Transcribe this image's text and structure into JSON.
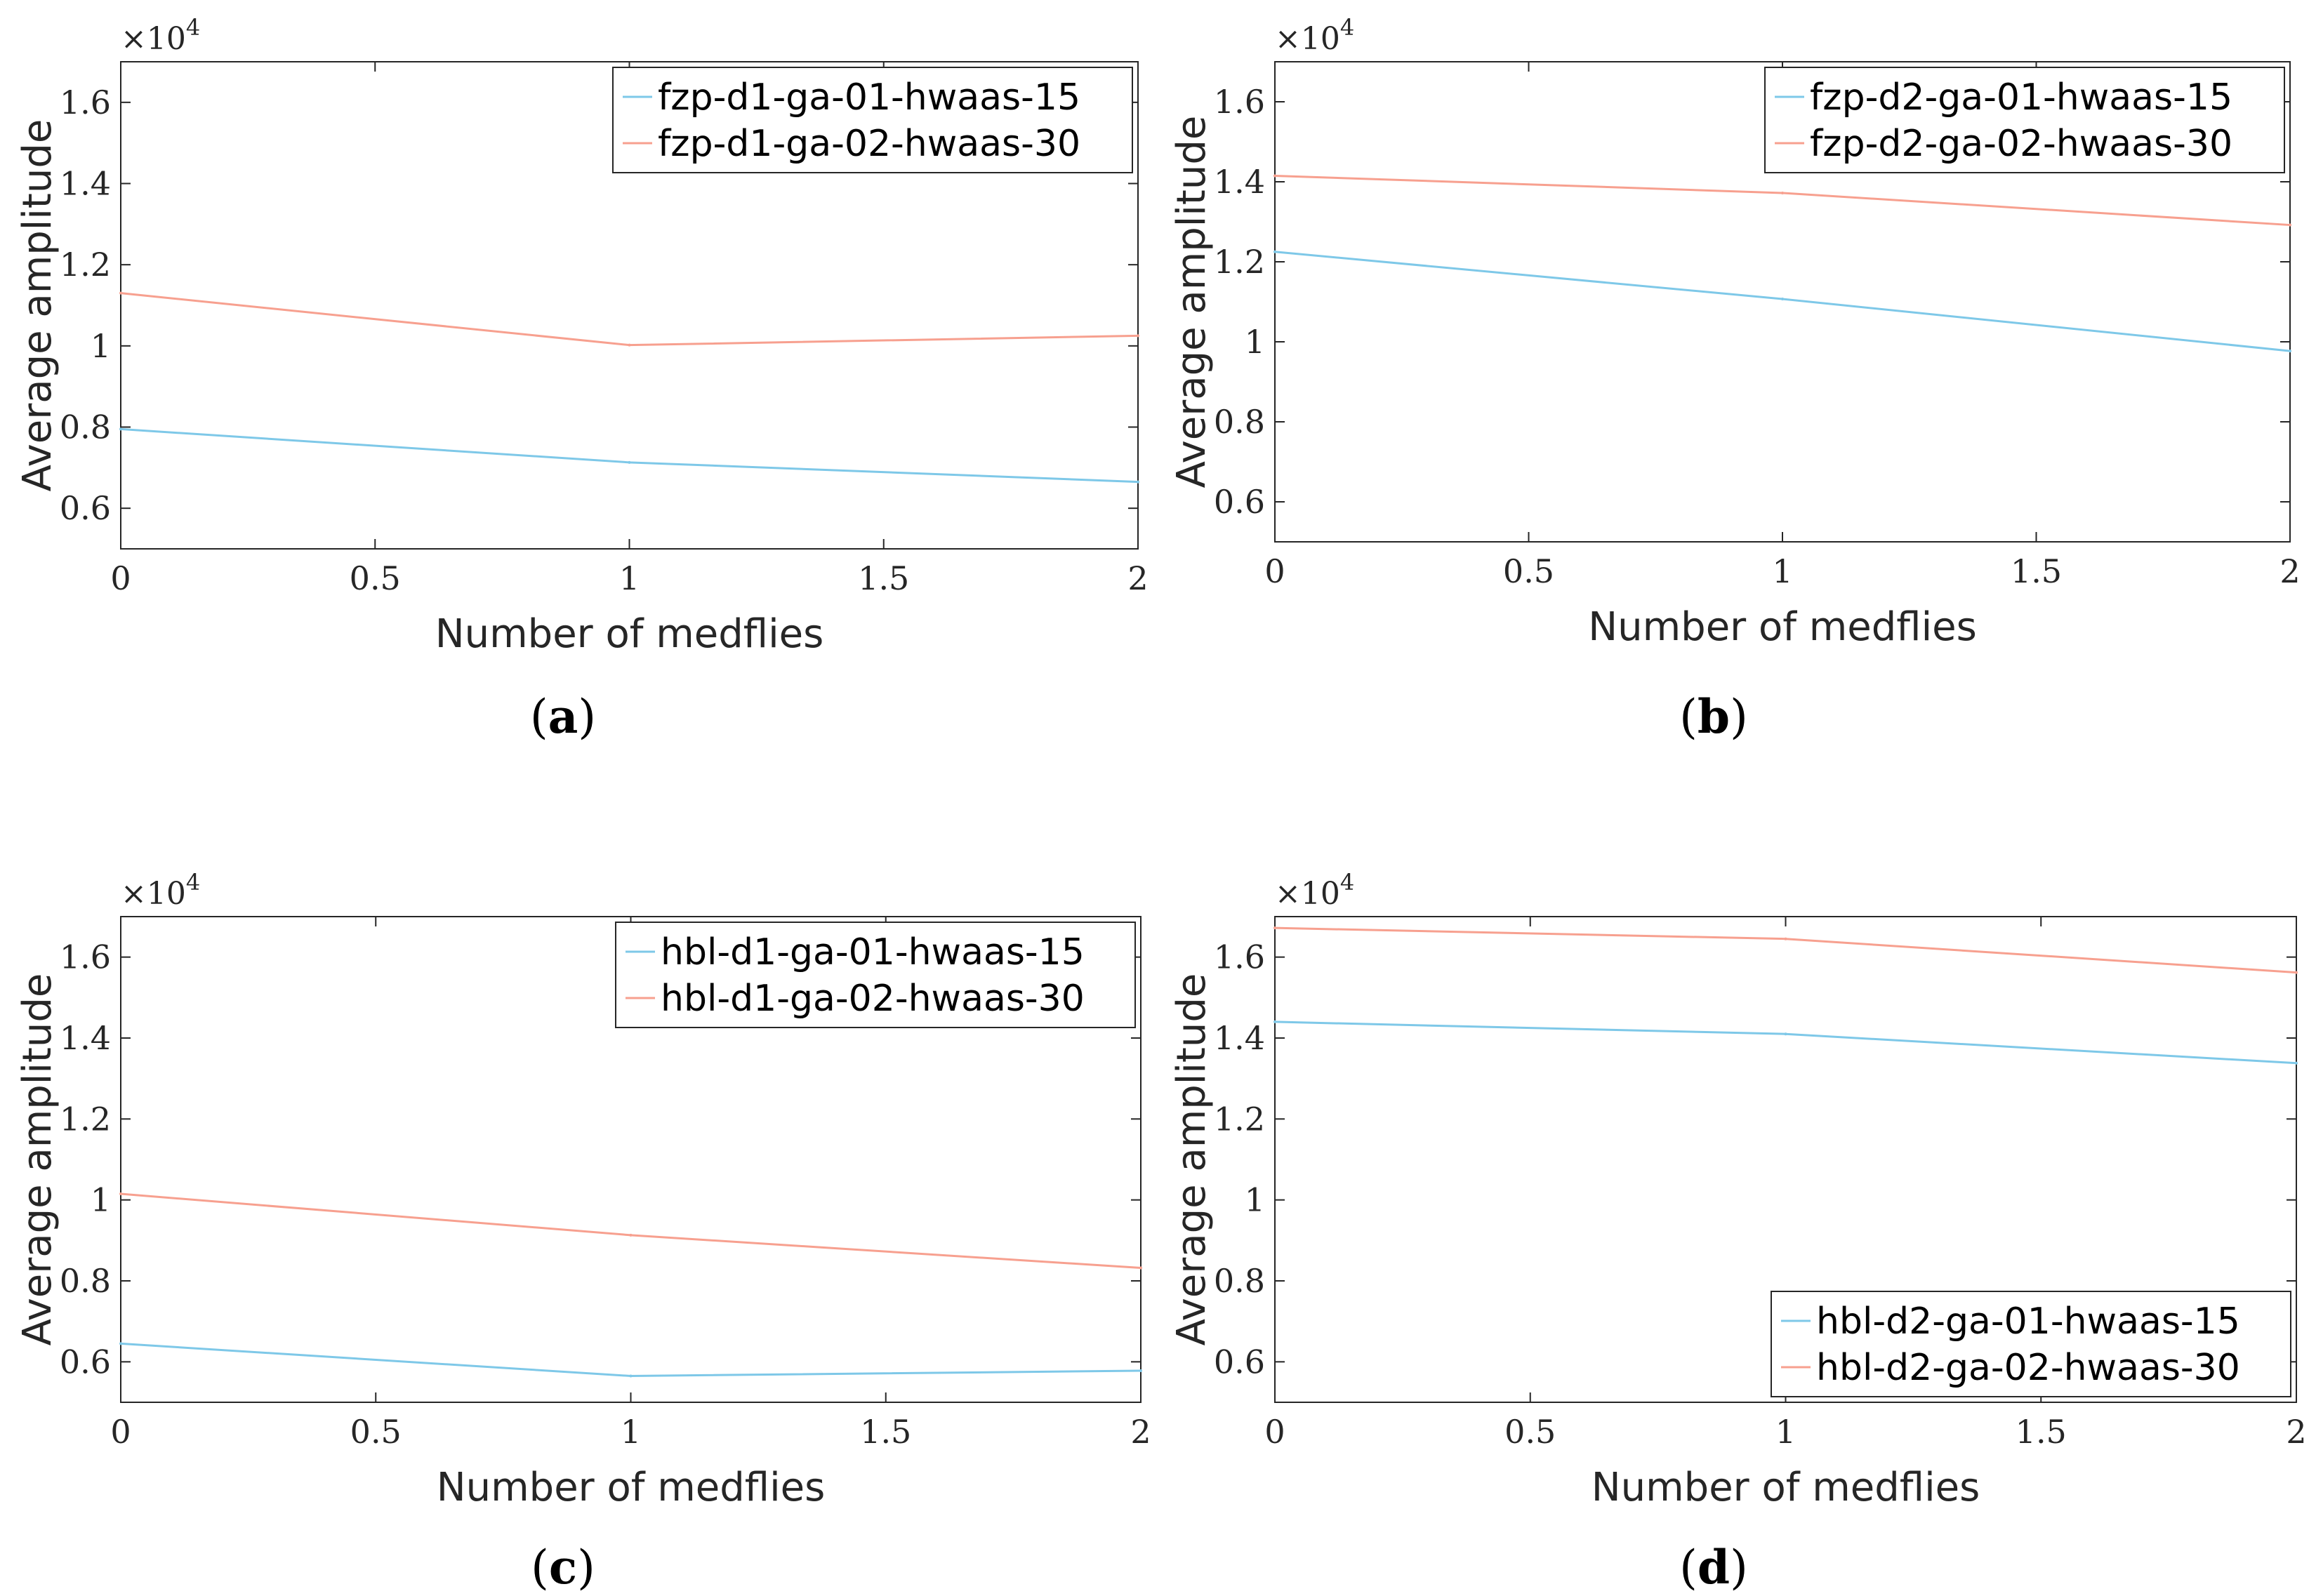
{
  "chart_data": [
    {
      "type": "line",
      "caption_letter": "a",
      "xlabel": "Number of medflies",
      "ylabel": "Average amplitude",
      "y_exponent": "×10",
      "y_exponent_power": "4",
      "xlim": [
        0,
        2
      ],
      "ylim": [
        0.5,
        1.7
      ],
      "xticks": [
        "0",
        "0.5",
        "1",
        "1.5",
        "2"
      ],
      "yticks": [
        "0.6",
        "0.8",
        "1",
        "1.2",
        "1.4",
        "1.6"
      ],
      "legend_position": "top-right",
      "x": [
        0,
        1,
        2
      ],
      "series": [
        {
          "name": "fzp-d1-ga-01-hwaas-15",
          "color": "#7ec8e8",
          "values": [
            0.795,
            0.713,
            0.665
          ]
        },
        {
          "name": "fzp-d1-ga-02-hwaas-30",
          "color": "#f7a08f",
          "values": [
            1.13,
            1.002,
            1.025
          ]
        }
      ]
    },
    {
      "type": "line",
      "caption_letter": "b",
      "xlabel": "Number of medflies",
      "ylabel": "Average amplitude",
      "y_exponent": "×10",
      "y_exponent_power": "4",
      "xlim": [
        0,
        2
      ],
      "ylim": [
        0.5,
        1.7
      ],
      "xticks": [
        "0",
        "0.5",
        "1",
        "1.5",
        "2"
      ],
      "yticks": [
        "0.6",
        "0.8",
        "1",
        "1.2",
        "1.4",
        "1.6"
      ],
      "legend_position": "top-right",
      "x": [
        0,
        1,
        2
      ],
      "series": [
        {
          "name": "fzp-d2-ga-01-hwaas-15",
          "color": "#7ec8e8",
          "values": [
            1.225,
            1.107,
            0.977
          ]
        },
        {
          "name": "fzp-d2-ga-02-hwaas-30",
          "color": "#f7a08f",
          "values": [
            1.415,
            1.372,
            1.292
          ]
        }
      ]
    },
    {
      "type": "line",
      "caption_letter": "c",
      "xlabel": "Number of medflies",
      "ylabel": "Average amplitude",
      "y_exponent": "×10",
      "y_exponent_power": "4",
      "xlim": [
        0,
        2
      ],
      "ylim": [
        0.5,
        1.7
      ],
      "xticks": [
        "0",
        "0.5",
        "1",
        "1.5",
        "2"
      ],
      "yticks": [
        "0.6",
        "0.8",
        "1",
        "1.2",
        "1.4",
        "1.6"
      ],
      "legend_position": "top-right",
      "x": [
        0,
        1,
        2
      ],
      "series": [
        {
          "name": "hbl-d1-ga-01-hwaas-15",
          "color": "#7ec8e8",
          "values": [
            0.645,
            0.565,
            0.578
          ]
        },
        {
          "name": "hbl-d1-ga-02-hwaas-30",
          "color": "#f7a08f",
          "values": [
            1.015,
            0.913,
            0.832
          ]
        }
      ]
    },
    {
      "type": "line",
      "caption_letter": "d",
      "xlabel": "Number of medflies",
      "ylabel": "Average amplitude",
      "y_exponent": "×10",
      "y_exponent_power": "4",
      "xlim": [
        0,
        2
      ],
      "ylim": [
        0.5,
        1.7
      ],
      "xticks": [
        "0",
        "0.5",
        "1",
        "1.5",
        "2"
      ],
      "yticks": [
        "0.6",
        "0.8",
        "1",
        "1.2",
        "1.4",
        "1.6"
      ],
      "legend_position": "bottom-right",
      "x": [
        0,
        1,
        2
      ],
      "series": [
        {
          "name": "hbl-d2-ga-01-hwaas-15",
          "color": "#7ec8e8",
          "values": [
            1.44,
            1.41,
            1.338
          ]
        },
        {
          "name": "hbl-d2-ga-02-hwaas-30",
          "color": "#f7a08f",
          "values": [
            1.672,
            1.645,
            1.562
          ]
        }
      ]
    }
  ]
}
